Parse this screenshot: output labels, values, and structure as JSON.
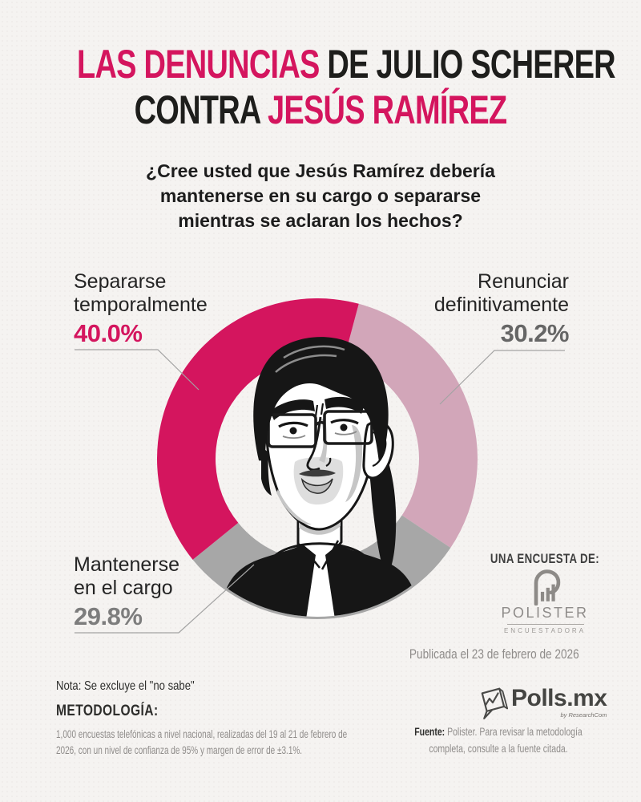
{
  "colors": {
    "accent": "#d4155e",
    "mauve": "#d2a6b9",
    "gray_segment": "#a7a7a7",
    "background": "#f5f3f1",
    "ink": "#1e1e1c"
  },
  "title": {
    "line1_accent": "LAS DENUNCIAS",
    "line1_rest": " DE JULIO SCHERER",
    "line2_rest": "CONTRA ",
    "line2_accent": "JESÚS RAMÍREZ"
  },
  "question": {
    "line1": "¿Cree usted que Jesús Ramírez debería",
    "line2": "mantenerse en su cargo o separarse",
    "line3": "mientras se aclaran los hechos?"
  },
  "chart_data": {
    "type": "donut",
    "title": "¿Cree usted que Jesús Ramírez debería mantenerse en su cargo o separarse mientras se aclaran los hechos?",
    "start_angle_deg": 15,
    "direction": "clockwise",
    "inner_radius_ratio": 0.635,
    "center_image": "black-and-white illustrated portrait of Jesús Ramírez",
    "note": "Se excluye el \"no sabe\"",
    "segments": [
      {
        "id": "renunciar",
        "label": "Renunciar definitivamente",
        "value": 30.2,
        "display": "30.2%",
        "color": "#d2a6b9",
        "value_color": "#666666"
      },
      {
        "id": "mantenerse",
        "label": "Mantenerse en el cargo",
        "value": 29.8,
        "display": "29.8%",
        "color": "#a7a7a7",
        "value_color": "#7d7d7d"
      },
      {
        "id": "separarse",
        "label": "Separarse temporalmente",
        "value": 40.0,
        "display": "40.0%",
        "color": "#d4155e",
        "value_color": "#d4155e"
      }
    ]
  },
  "callouts": {
    "separarse": {
      "line1": "Separarse",
      "line2": "temporalmente"
    },
    "renunciar": {
      "line1": "Renunciar",
      "line2": "definitivamente"
    },
    "mantenerse": {
      "line1": "Mantenerse",
      "line2": "en el cargo"
    }
  },
  "attribution": {
    "kicker": "UNA ENCUESTA DE:",
    "pollster_name": "POLISTER",
    "pollster_subtitle": "ENCUESTADORA",
    "published": "Publicada el 23 de febrero de 2026"
  },
  "footer": {
    "note": "Nota: Se excluye el \"no sabe\"",
    "methodology_title": "METODOLOGÍA:",
    "methodology_text": "1,000 encuestas telefónicas a nivel nacional, realizadas del 19 al 21 de febrero de 2026, con un nivel de confianza de 95% y margen de error de ±3.1%.",
    "brand_name": "Polls.mx",
    "brand_tagline": "by ResearchCom",
    "source_label": "Fuente:",
    "source_text": " Polister. Para revisar la metodología completa, consulte a la fuente citada."
  }
}
